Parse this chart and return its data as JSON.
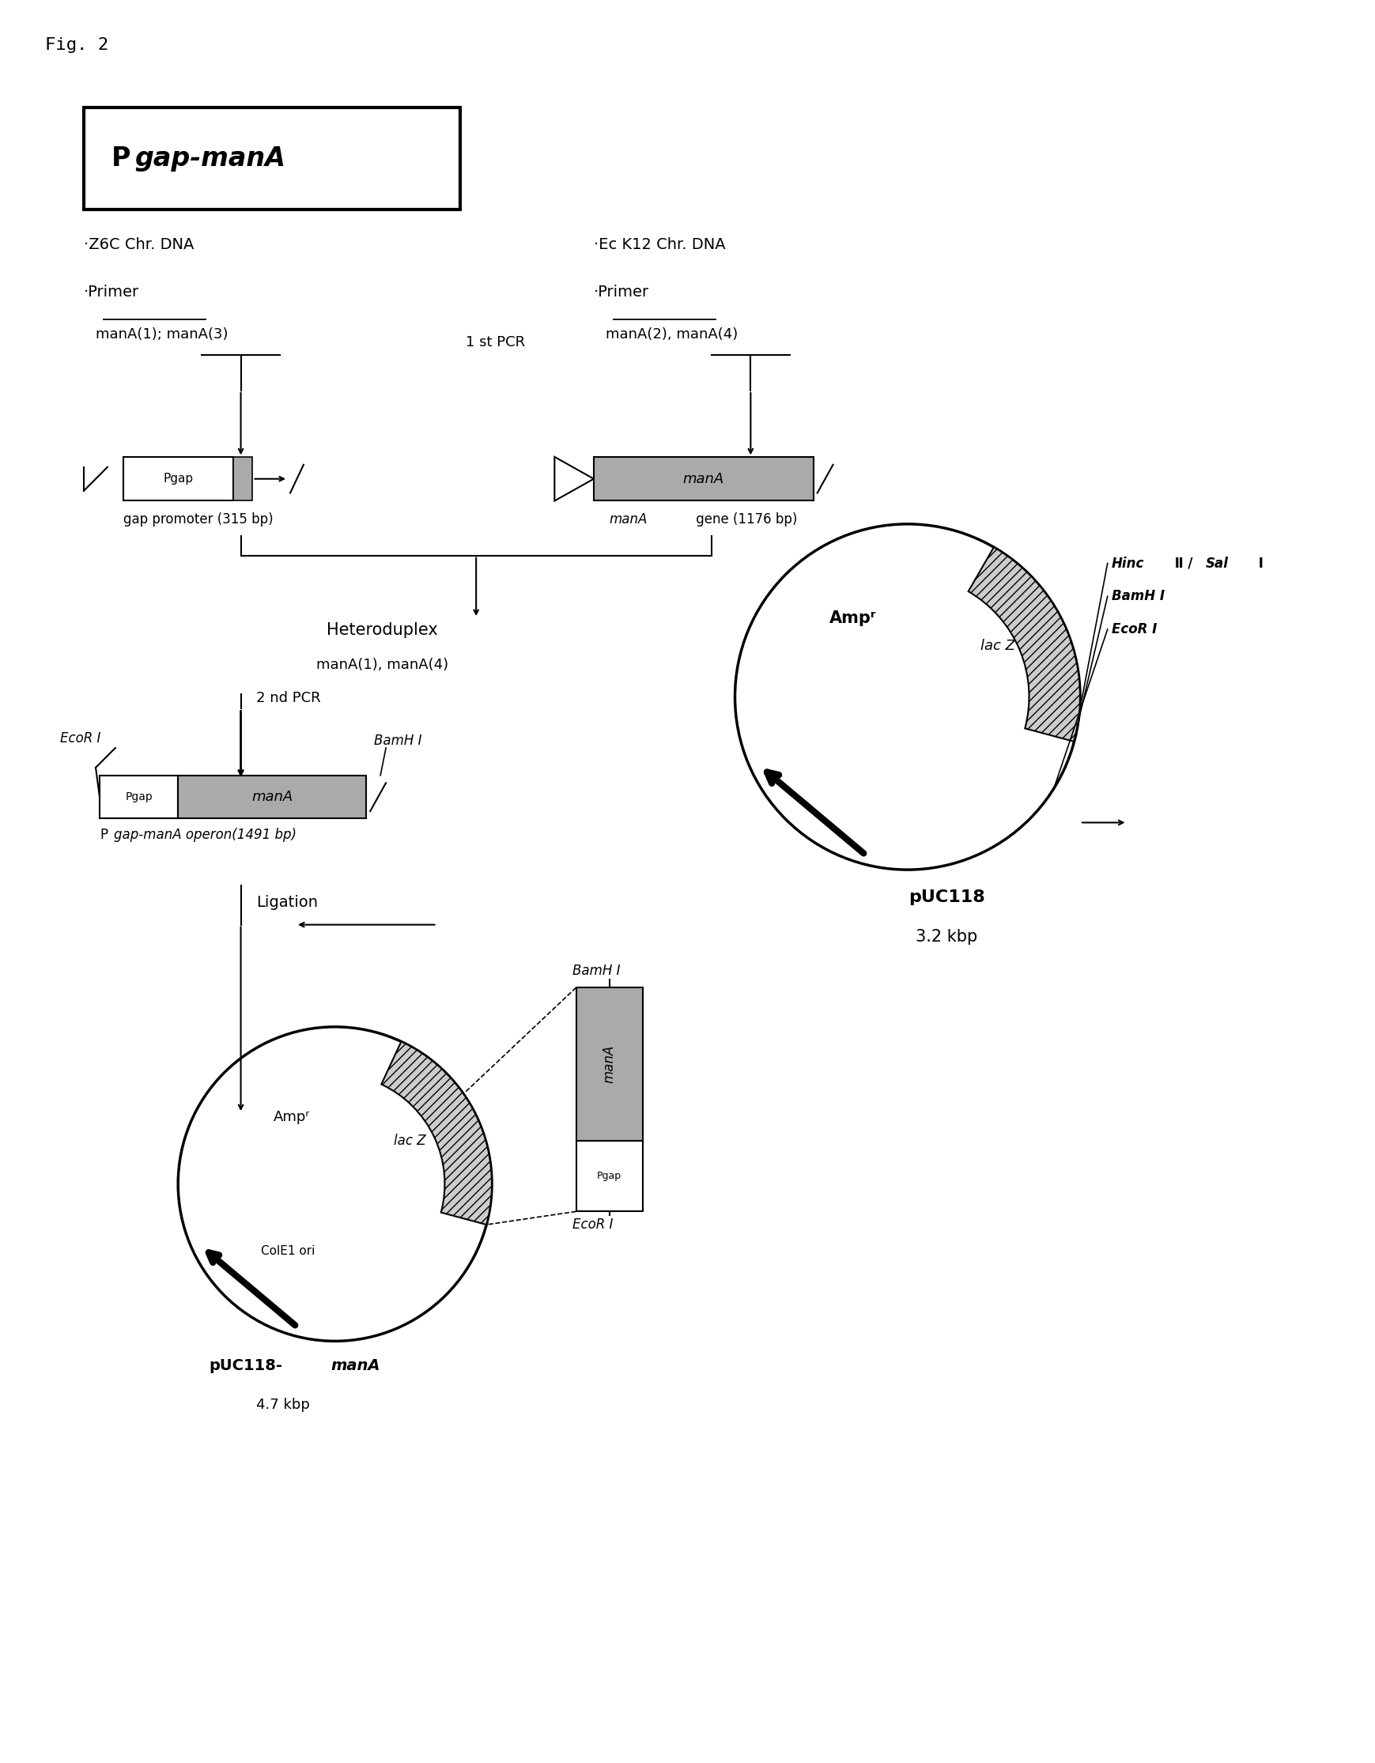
{
  "fig_label": "Fig. 2",
  "background_color": "#ffffff",
  "gap_promoter_label": "gap promoter (315 bp)",
  "mana_gene_label": "manA gene (1176 bp)",
  "heteroduplex_line1": "Heteroduplex",
  "heteroduplex_line2": "manA(1), manA(4)",
  "pcr1_label": "1 st PCR",
  "pcr2_label": "2 nd PCR",
  "operon_label": "Pgap-manA operon(1491 bp)",
  "ligation_label": "Ligation",
  "puc118_name": "pUC118",
  "puc118_size": "3.2 kbp",
  "puc118mana_name": "pUC118-manA",
  "puc118mana_size": "4.7 kbp"
}
